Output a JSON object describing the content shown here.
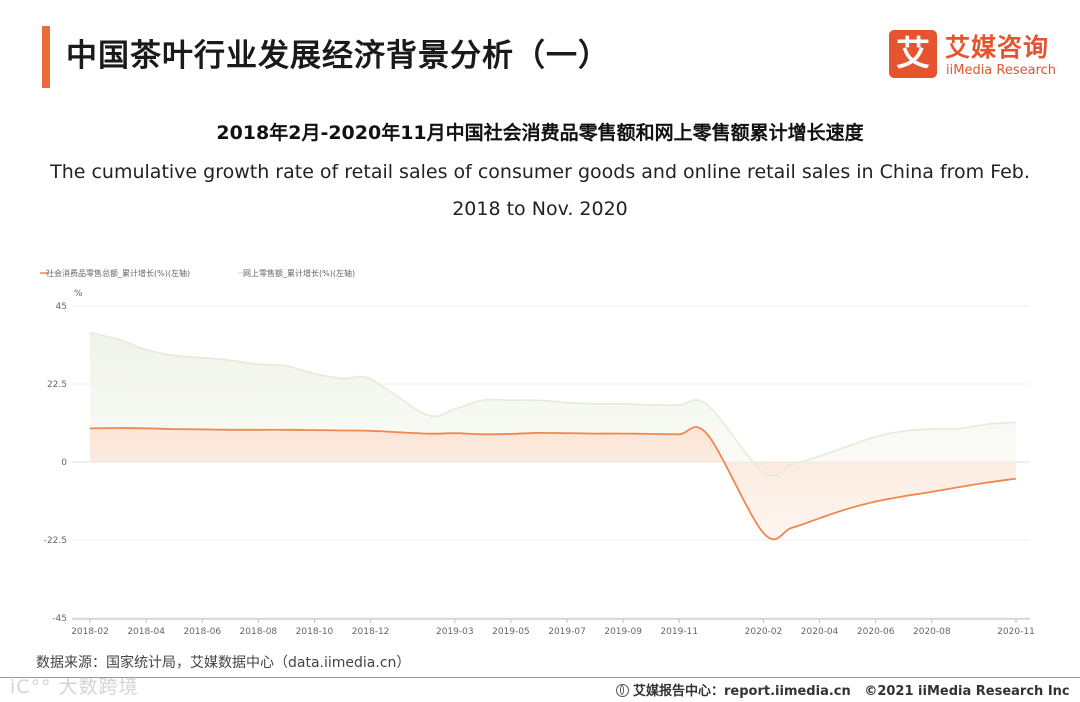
{
  "header": {
    "title": "中国茶叶行业发展经济背景分析（一）",
    "logo_mark": "艾",
    "logo_cn": "艾媒咨询",
    "logo_en": "iiMedia Research"
  },
  "colors": {
    "accent": "#ee6c3a",
    "series_retail": "#f0884e",
    "series_online": "#e4ecd6",
    "brand": "#e5542f"
  },
  "chart_data": {
    "type": "line",
    "title": "2018年2月-2020年11月中国社会消费品零售额和网上零售额累计增长速度",
    "subtitle": "The cumulative growth rate of retail sales of consumer goods and online retail sales in China from Feb. 2018 to Nov. 2020",
    "ylabel": "%",
    "ylim": [
      -45,
      45
    ],
    "yticks": [
      "45",
      "22.5",
      "0",
      "-22.5",
      "-45"
    ],
    "legend_position": "top-left",
    "grid": true,
    "x_tick_labels": [
      "2018-02",
      "2018-04",
      "2018-06",
      "2018-08",
      "2018-10",
      "2018-12",
      "2019-03",
      "2019-05",
      "2019-07",
      "2019-09",
      "2019-11",
      "2020-02",
      "2020-04",
      "2020-06",
      "2020-08",
      "2020-11"
    ],
    "x": [
      "2018-02",
      "2018-03",
      "2018-04",
      "2018-05",
      "2018-06",
      "2018-07",
      "2018-08",
      "2018-09",
      "2018-10",
      "2018-11",
      "2018-12",
      "2019-02",
      "2019-03",
      "2019-04",
      "2019-05",
      "2019-06",
      "2019-07",
      "2019-08",
      "2019-09",
      "2019-10",
      "2019-11",
      "2019-12",
      "2020-02",
      "2020-03",
      "2020-04",
      "2020-05",
      "2020-06",
      "2020-07",
      "2020-08",
      "2020-09",
      "2020-10",
      "2020-11"
    ],
    "series": [
      {
        "name": "社会消费品零售总额_累计增长(%)(左轴)",
        "values": [
          9.7,
          9.8,
          9.7,
          9.5,
          9.4,
          9.3,
          9.3,
          9.3,
          9.2,
          9.1,
          9.0,
          8.2,
          8.3,
          8.0,
          8.1,
          8.4,
          8.3,
          8.2,
          8.2,
          8.1,
          8.0,
          8.0,
          -20.5,
          -19.0,
          -16.2,
          -13.5,
          -11.4,
          -9.9,
          -8.6,
          -7.2,
          -5.9,
          -4.8
        ]
      },
      {
        "name": "网上零售额_累计增长(%)(左轴)",
        "values": [
          37.3,
          35.4,
          32.4,
          30.7,
          30.1,
          29.3,
          28.2,
          27.7,
          25.5,
          24.1,
          23.9,
          13.6,
          15.3,
          17.8,
          17.8,
          17.8,
          17.1,
          16.8,
          16.8,
          16.4,
          16.4,
          16.5,
          -3.0,
          -0.8,
          1.7,
          4.5,
          7.3,
          8.9,
          9.5,
          9.7,
          10.9,
          11.5
        ]
      }
    ]
  },
  "footer": {
    "source": "数据来源：国家统计局，艾媒数据中心（data.iimedia.cn）",
    "watermark": "iC°° 大数跨境",
    "report_label": "艾媒报告中心：report.iimedia.cn",
    "copyright": "©2021  iiMedia Research  Inc"
  }
}
